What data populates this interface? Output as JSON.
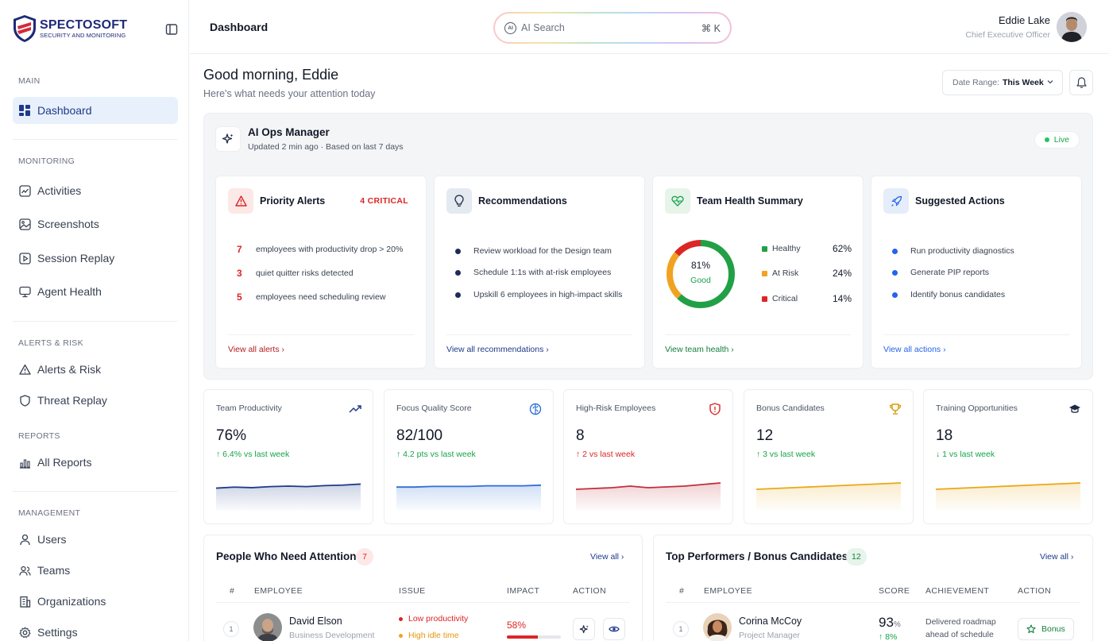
{
  "brand": {
    "name_part1": "SPECTO",
    "name_part2": "SOFT",
    "tagline": "SECURITY AND MONITORING"
  },
  "sidebar": {
    "sections": {
      "main": "MAIN",
      "monitoring": "MONITORING",
      "alerts": "ALERTS & RISK",
      "reports": "REPORTS",
      "management": "MANAGEMENT"
    },
    "items": {
      "dashboard": "Dashboard",
      "activities": "Activities",
      "screenshots": "Screenshots",
      "session_replay": "Session Replay",
      "agent_health": "Agent Health",
      "alerts_risk": "Alerts & Risk",
      "threat_replay": "Threat Replay",
      "all_reports": "All Reports",
      "users": "Users",
      "teams": "Teams",
      "organizations": "Organizations",
      "settings": "Settings"
    }
  },
  "header": {
    "title": "Dashboard",
    "search_placeholder": "AI Search",
    "search_icon_text": "AI",
    "search_shortcut": "⌘ K",
    "user_name": "Eddie Lake",
    "user_role": "Chief Executive Officer"
  },
  "greeting": {
    "title": "Good morning, Eddie",
    "subtitle": "Here's what needs your attention today"
  },
  "date_range": {
    "label": "Date Range:",
    "value": "This Week"
  },
  "ai_ops": {
    "title": "AI Ops Manager",
    "subtitle": "Updated 2 min ago · Based on last 7 days",
    "status": "Live",
    "priority_alerts": {
      "title": "Priority Alerts",
      "badge": "4 CRITICAL",
      "rows": [
        {
          "n": "7",
          "text": "employees with productivity drop > 20%"
        },
        {
          "n": "3",
          "text": "quiet quitter risks detected"
        },
        {
          "n": "5",
          "text": "employees need scheduling review"
        }
      ],
      "link": "View all alerts"
    },
    "recommendations": {
      "title": "Recommendations",
      "rows": [
        "Review workload for the Design team",
        "Schedule 1:1s with at-risk employees",
        "Upskill 6 employees in high-impact skills"
      ],
      "link": "View all recommendations"
    },
    "team_health": {
      "title": "Team Health Summary",
      "score": "81%",
      "score_label": "Good",
      "legend": [
        {
          "label": "Healthy",
          "pct": "62%",
          "color": "#22a046",
          "value": 62
        },
        {
          "label": "At Risk",
          "pct": "24%",
          "color": "#f0a320",
          "value": 24
        },
        {
          "label": "Critical",
          "pct": "14%",
          "color": "#dc2626",
          "value": 14
        }
      ],
      "link": "View team health"
    },
    "suggested_actions": {
      "title": "Suggested Actions",
      "rows": [
        "Run productivity diagnostics",
        "Generate PIP reports",
        "Identify bonus candidates"
      ],
      "link": "View all actions"
    }
  },
  "kpis": [
    {
      "label": "Team Productivity",
      "value": "76%",
      "trend": "↑ 6.4% vs last week",
      "trend_color": "#16a34a",
      "line_color": "#1e3a8a",
      "icon": "trending-up-icon",
      "series": [
        50,
        52,
        51,
        53,
        54,
        53,
        55,
        56,
        58
      ]
    },
    {
      "label": "Focus Quality Score",
      "value": "82/100",
      "trend": "↑ 4.2 pts vs last week",
      "trend_color": "#16a34a",
      "line_color": "#2f6fd6",
      "icon": "brain-icon",
      "series": [
        50,
        50,
        51,
        51,
        51,
        52,
        52,
        52,
        53
      ]
    },
    {
      "label": "High-Risk Employees",
      "value": "8",
      "trend": "↑ 2 vs last week",
      "trend_color": "#dc2626",
      "line_color": "#c0303a",
      "icon": "shield-alert-icon",
      "series": [
        40,
        42,
        44,
        48,
        44,
        46,
        48,
        52,
        56
      ]
    },
    {
      "label": "Bonus Candidates",
      "value": "12",
      "trend": "↑ 3 vs last week",
      "trend_color": "#16a34a",
      "line_color": "#e8a817",
      "icon": "trophy-icon",
      "series": [
        40,
        42,
        44,
        46,
        48,
        50,
        52,
        54,
        56
      ]
    },
    {
      "label": "Training Opportunities",
      "value": "18",
      "trend": "↓ 1 vs last week",
      "trend_color": "#16a34a",
      "line_color": "#e8a817",
      "icon": "graduation-cap-icon",
      "series": [
        40,
        42,
        44,
        46,
        48,
        50,
        52,
        54,
        56
      ]
    }
  ],
  "attention": {
    "title": "People Who Need Attention",
    "count": "7",
    "view_all": "View all",
    "columns": [
      "#",
      "EMPLOYEE",
      "ISSUE",
      "IMPACT",
      "ACTION"
    ],
    "rows": [
      {
        "n": "1",
        "name": "David Elson",
        "dept": "Business Development",
        "issues": [
          "Low productivity",
          "High idle time"
        ],
        "impact": "58%",
        "impact_value": 0.58
      }
    ]
  },
  "performers": {
    "title": "Top Performers / Bonus Candidates",
    "count": "12",
    "view_all": "View all",
    "columns": [
      "#",
      "EMPLOYEE",
      "SCORE",
      "ACHIEVEMENT",
      "ACTION"
    ],
    "rows": [
      {
        "n": "1",
        "name": "Corina McCoy",
        "role": "Project Manager",
        "score": "93",
        "score_unit": "%",
        "trend": "↑ 8%",
        "achievement": "Delivered roadmap ahead of schedule",
        "action": "Bonus"
      }
    ]
  }
}
